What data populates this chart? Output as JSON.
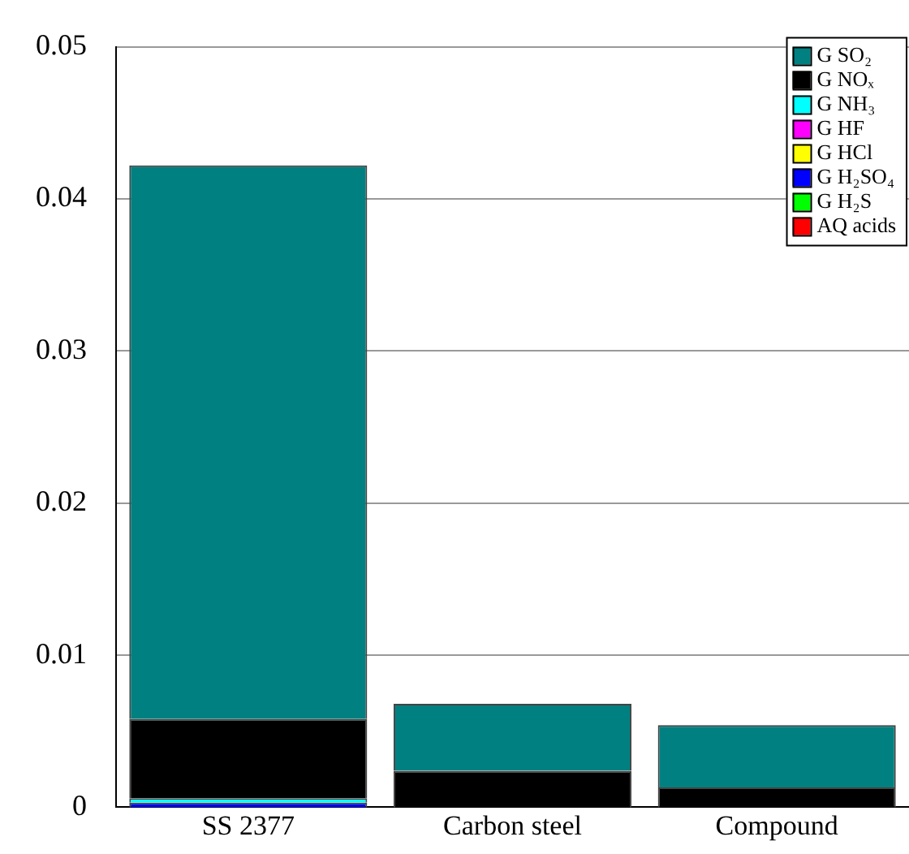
{
  "chart_data": {
    "type": "bar",
    "stacked": true,
    "categories": [
      "SS 2377",
      "Carbon steel",
      "Compound"
    ],
    "series": [
      {
        "name": "AQ acids",
        "color": "#ff0000",
        "values": [
          0,
          0,
          0
        ]
      },
      {
        "name": "G H₂S",
        "color": "#00ff00",
        "values": [
          0,
          0,
          0
        ]
      },
      {
        "name": "G H₂SO₄",
        "color": "#0000ff",
        "values": [
          0.0003,
          0,
          0
        ]
      },
      {
        "name": "G HCl",
        "color": "#ffff00",
        "values": [
          0,
          0,
          0
        ]
      },
      {
        "name": "G HF",
        "color": "#ff00ff",
        "values": [
          0,
          0,
          0
        ]
      },
      {
        "name": "G NH₃",
        "color": "#00ffff",
        "values": [
          0.0003,
          0,
          0
        ]
      },
      {
        "name": "G NOₓ",
        "color": "#000000",
        "values": [
          0.0052,
          0.0024,
          0.0013
        ]
      },
      {
        "name": "G SO₂",
        "color": "#008080",
        "values": [
          0.0364,
          0.0044,
          0.0041
        ]
      }
    ],
    "ylim": [
      0,
      0.05
    ],
    "yticks": [
      0,
      0.01,
      0.02,
      0.03,
      0.04,
      0.05
    ],
    "grid": "y",
    "legend": "top right"
  }
}
